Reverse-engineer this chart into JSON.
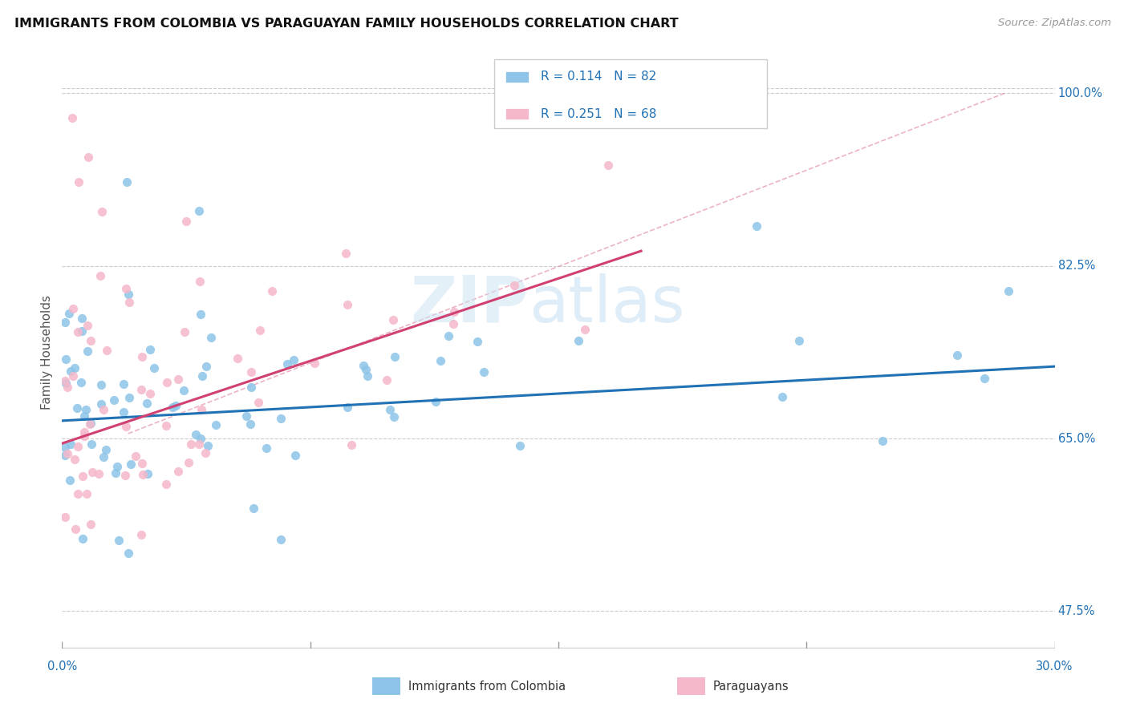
{
  "title": "IMMIGRANTS FROM COLOMBIA VS PARAGUAYAN FAMILY HOUSEHOLDS CORRELATION CHART",
  "source": "Source: ZipAtlas.com",
  "ylabel": "Family Households",
  "ytick_labels": [
    "47.5%",
    "65.0%",
    "82.5%",
    "100.0%"
  ],
  "ytick_values": [
    0.475,
    0.65,
    0.825,
    1.0
  ],
  "xlim": [
    0.0,
    0.3
  ],
  "ylim": [
    0.435,
    1.04
  ],
  "legend_r1": "R = 0.114",
  "legend_n1": "N = 82",
  "legend_r2": "R = 0.251",
  "legend_n2": "N = 68",
  "blue_color": "#8dc4e8",
  "pink_color": "#f5b8cb",
  "blue_line_color": "#2171b5",
  "pink_line_color": "#d04070",
  "pink_dash_color": "#e8a0b8",
  "text_color": "#2171b5"
}
